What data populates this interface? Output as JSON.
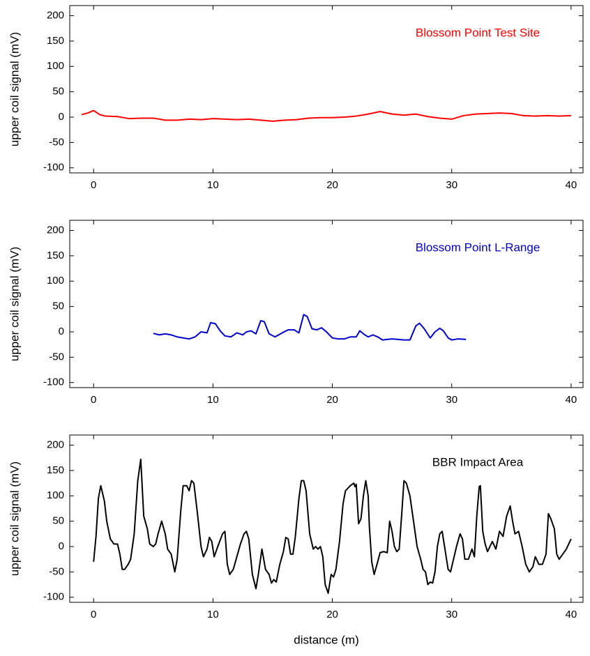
{
  "chart_data": [
    {
      "type": "line",
      "ylabel": "upper coil signal (mV)",
      "xlim": [
        -2,
        41
      ],
      "ylim": [
        -110,
        220
      ],
      "xticks": [
        0,
        10,
        20,
        30,
        40
      ],
      "yticks": [
        -100,
        -50,
        0,
        50,
        100,
        150,
        200
      ],
      "x": [
        -1,
        -0.5,
        0,
        0.5,
        1,
        2,
        3,
        4,
        5,
        6,
        7,
        8,
        9,
        10,
        11,
        12,
        13,
        14,
        15,
        16,
        17,
        18,
        19,
        20,
        21,
        22,
        23,
        24,
        25,
        26,
        27,
        28,
        29,
        30,
        31,
        32,
        33,
        34,
        35,
        36,
        37,
        38,
        39,
        40
      ],
      "series": [
        {
          "name": "Blossom Point Test Site",
          "color": "#ff0000",
          "values": [
            5,
            8,
            13,
            5,
            2,
            1,
            -3,
            -2,
            -2,
            -6,
            -6,
            -4,
            -5,
            -3,
            -4,
            -5,
            -4,
            -6,
            -8,
            -6,
            -5,
            -2,
            -1,
            -1,
            0,
            2,
            6,
            11,
            6,
            4,
            6,
            1,
            -2,
            -4,
            3,
            6,
            7,
            8,
            7,
            3,
            2,
            3,
            2,
            3
          ]
        }
      ]
    },
    {
      "type": "line",
      "ylabel": "upper coil signal (mV)",
      "xlim": [
        -2,
        41
      ],
      "ylim": [
        -110,
        220
      ],
      "xticks": [
        0,
        10,
        20,
        30,
        40
      ],
      "yticks": [
        -100,
        -50,
        0,
        50,
        100,
        150,
        200
      ],
      "x": [
        5,
        5.5,
        6,
        6.5,
        7,
        7.5,
        8,
        8.5,
        9,
        9.5,
        9.8,
        10.2,
        10.6,
        11,
        11.5,
        12,
        12.5,
        12.8,
        13.2,
        13.6,
        14,
        14.3,
        14.7,
        15.2,
        15.8,
        16.3,
        16.8,
        17.2,
        17.6,
        17.9,
        18.3,
        18.7,
        19.1,
        19.5,
        20,
        20.5,
        21,
        21.5,
        22,
        22.3,
        22.6,
        23,
        23.4,
        23.8,
        24.2,
        25,
        26,
        26.5,
        27,
        27.3,
        27.7,
        28.2,
        28.6,
        29,
        29.3,
        29.7,
        30,
        30.5,
        31.2
      ],
      "series": [
        {
          "name": "Blossom Point L-Range",
          "color": "#0000cc",
          "values": [
            -3,
            -6,
            -4,
            -6,
            -10,
            -12,
            -14,
            -10,
            0,
            -2,
            18,
            16,
            2,
            -8,
            -10,
            -2,
            -6,
            0,
            2,
            -4,
            22,
            20,
            -4,
            -10,
            -2,
            4,
            4,
            -2,
            34,
            30,
            6,
            4,
            8,
            0,
            -12,
            -14,
            -14,
            -10,
            -10,
            2,
            -4,
            -10,
            -6,
            -10,
            -16,
            -14,
            -16,
            -16,
            12,
            17,
            6,
            -12,
            0,
            7,
            2,
            -12,
            -16,
            -14,
            -15
          ]
        }
      ]
    },
    {
      "type": "line",
      "ylabel": "upper coil signal (mV)",
      "xlabel": "distance (m)",
      "xlim": [
        -2,
        41
      ],
      "ylim": [
        -110,
        220
      ],
      "xticks": [
        0,
        10,
        20,
        30,
        40
      ],
      "yticks": [
        -100,
        -50,
        0,
        50,
        100,
        150,
        200
      ],
      "x": [
        0,
        0.2,
        0.4,
        0.6,
        0.9,
        1.1,
        1.4,
        1.7,
        2.0,
        2.2,
        2.4,
        2.6,
        2.9,
        3.1,
        3.4,
        3.7,
        3.95,
        4.2,
        4.5,
        4.7,
        5.0,
        5.2,
        5.4,
        5.7,
        6.0,
        6.2,
        6.5,
        6.8,
        7.0,
        7.3,
        7.5,
        7.8,
        8.0,
        8.2,
        8.4,
        8.7,
        9.0,
        9.2,
        9.5,
        9.7,
        9.9,
        10.1,
        10.4,
        10.8,
        11.0,
        11.2,
        11.4,
        11.7,
        12.0,
        12.3,
        12.6,
        12.8,
        13.0,
        13.3,
        13.6,
        13.8,
        14.1,
        14.4,
        14.7,
        14.9,
        15.1,
        15.3,
        15.6,
        15.9,
        16.1,
        16.3,
        16.5,
        16.7,
        16.9,
        17.2,
        17.4,
        17.6,
        17.8,
        18.1,
        18.4,
        18.6,
        18.8,
        19.0,
        19.2,
        19.4,
        19.65,
        19.9,
        20.1,
        20.3,
        20.6,
        20.9,
        21.1,
        21.5,
        21.8,
        21.9,
        22.0,
        22.2,
        22.4,
        22.6,
        22.8,
        23.0,
        23.1,
        23.3,
        23.5,
        23.8,
        24.0,
        24.3,
        24.6,
        24.8,
        25.0,
        25.2,
        25.4,
        25.6,
        25.8,
        26.0,
        26.2,
        26.5,
        26.8,
        27.1,
        27.4,
        27.6,
        27.8,
        28.0,
        28.2,
        28.4,
        28.6,
        28.8,
        29.0,
        29.2,
        29.4,
        29.7,
        29.9,
        30.1,
        30.4,
        30.7,
        30.9,
        31.1,
        31.4,
        31.7,
        31.9,
        32.1,
        32.3,
        32.4,
        32.6,
        32.8,
        33.0,
        33.2,
        33.4,
        33.7,
        34.0,
        34.3,
        34.6,
        34.9,
        35.1,
        35.3,
        35.6,
        35.9,
        36.2,
        36.5,
        36.8,
        37.0,
        37.3,
        37.6,
        37.9,
        38.1,
        38.3,
        38.6,
        38.8,
        39.0,
        39.3,
        39.6,
        39.8,
        40.0
      ],
      "series": [
        {
          "name": "BBR Impact Area",
          "color": "#000000",
          "values": [
            -30,
            20,
            95,
            120,
            90,
            50,
            15,
            5,
            5,
            -15,
            -45,
            -45,
            -35,
            -25,
            25,
            130,
            172,
            60,
            35,
            5,
            0,
            5,
            25,
            50,
            25,
            -5,
            -15,
            -50,
            -25,
            70,
            120,
            120,
            110,
            130,
            125,
            65,
            0,
            -20,
            -5,
            18,
            10,
            -20,
            0,
            25,
            30,
            -35,
            -55,
            -45,
            -20,
            5,
            25,
            30,
            15,
            -55,
            -83,
            -55,
            -5,
            -45,
            -55,
            -72,
            -65,
            -70,
            -35,
            -10,
            18,
            15,
            -15,
            -15,
            20,
            95,
            130,
            130,
            110,
            25,
            -5,
            0,
            -5,
            0,
            -20,
            -75,
            -92,
            -55,
            -60,
            -45,
            10,
            85,
            110,
            120,
            125,
            118,
            123,
            45,
            55,
            100,
            130,
            100,
            40,
            -30,
            -55,
            -30,
            -12,
            -10,
            -12,
            50,
            30,
            0,
            -10,
            -5,
            60,
            130,
            125,
            100,
            50,
            0,
            -25,
            -45,
            -50,
            -75,
            -70,
            -72,
            -50,
            0,
            25,
            30,
            0,
            -45,
            -50,
            -30,
            0,
            25,
            15,
            -25,
            -25,
            -5,
            -20,
            60,
            118,
            120,
            30,
            5,
            -10,
            0,
            10,
            -5,
            30,
            20,
            60,
            80,
            50,
            25,
            30,
            0,
            -35,
            -50,
            -40,
            -20,
            -35,
            -35,
            -15,
            65,
            55,
            35,
            -15,
            -25,
            -15,
            -5,
            5,
            15
          ]
        }
      ]
    }
  ]
}
